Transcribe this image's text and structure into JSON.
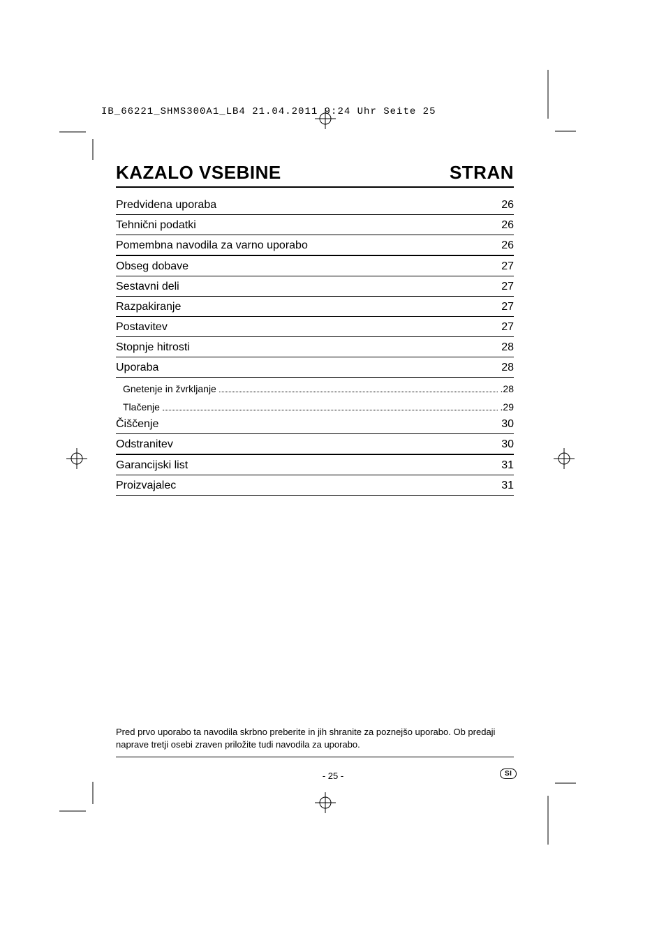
{
  "header_info": "IB_66221_SHMS300A1_LB4  21.04.2011  9:24 Uhr  Seite 25",
  "title_left": "KAZALO VSEBINE",
  "title_right": "STRAN",
  "toc": [
    {
      "label": "Predvidena uporaba",
      "page": "26",
      "heavy": false
    },
    {
      "label": "Tehnični podatki",
      "page": "26",
      "heavy": false
    },
    {
      "label": "Pomembna navodila za varno uporabo",
      "page": "26",
      "heavy": true
    },
    {
      "label": "Obseg dobave",
      "page": "27",
      "heavy": false
    },
    {
      "label": "Sestavni deli",
      "page": "27",
      "heavy": false
    },
    {
      "label": "Razpakiranje",
      "page": "27",
      "heavy": false
    },
    {
      "label": "Postavitev",
      "page": "27",
      "heavy": false
    },
    {
      "label": "Stopnje hitrosti",
      "page": "28",
      "heavy": false
    },
    {
      "label": "Uporaba",
      "page": "28",
      "heavy": false
    }
  ],
  "toc_subs": [
    {
      "label": "Gnetenje in žvrkljanje",
      "page": ".28"
    },
    {
      "label": "Tlačenje",
      "page": ".29"
    }
  ],
  "toc_after": [
    {
      "label": "Čiščenje",
      "page": "30",
      "heavy": false
    },
    {
      "label": "Odstranitev",
      "page": "30",
      "heavy": true
    },
    {
      "label": "Garancijski list",
      "page": "31",
      "heavy": false
    },
    {
      "label": "Proizvajalec",
      "page": "31",
      "heavy": false
    }
  ],
  "footer_text": "Pred prvo uporabo ta navodila skrbno preberite in jih shranite za poznejšo uporabo. Ob predaji naprave tretji osebi zraven priložite tudi navodila za uporabo.",
  "page_number": "- 25 -",
  "lang_code": "SI"
}
